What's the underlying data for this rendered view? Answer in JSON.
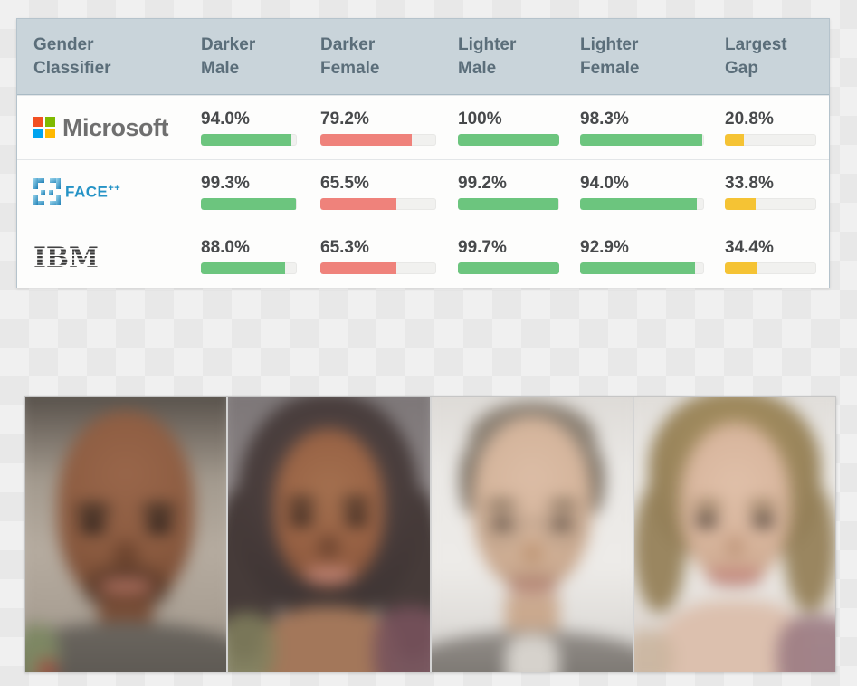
{
  "table": {
    "header": [
      {
        "line1": "Gender",
        "line2": "Classifier"
      },
      {
        "line1": "Darker",
        "line2": "Male"
      },
      {
        "line1": "Darker",
        "line2": "Female"
      },
      {
        "line1": "Lighter",
        "line2": "Male"
      },
      {
        "line1": "Lighter",
        "line2": "Female"
      },
      {
        "line1": "Largest",
        "line2": "Gap"
      }
    ],
    "colors": {
      "green": "#6cc57e",
      "red": "#ef827b",
      "yellow": "#f5c334",
      "header_bg": "#c9d4da",
      "header_text": "#5b6e7a",
      "value_text": "#47494b",
      "track": "#f1f1ef"
    },
    "rows": [
      {
        "company": "Microsoft",
        "cells": [
          {
            "label": "94.0%",
            "pct": 94,
            "color": "green"
          },
          {
            "label": "79.2%",
            "pct": 79.2,
            "color": "red"
          },
          {
            "label": "100%",
            "pct": 100,
            "color": "green"
          },
          {
            "label": "98.3%",
            "pct": 98.3,
            "color": "green"
          },
          {
            "label": "20.8%",
            "pct": 20.8,
            "color": "yellow"
          }
        ]
      },
      {
        "company": "FACE++",
        "cells": [
          {
            "label": "99.3%",
            "pct": 99.3,
            "color": "green"
          },
          {
            "label": "65.5%",
            "pct": 65.5,
            "color": "red"
          },
          {
            "label": "99.2%",
            "pct": 99.2,
            "color": "green"
          },
          {
            "label": "94.0%",
            "pct": 94,
            "color": "green"
          },
          {
            "label": "33.8%",
            "pct": 33.8,
            "color": "yellow"
          }
        ]
      },
      {
        "company": "IBM",
        "cells": [
          {
            "label": "88.0%",
            "pct": 88,
            "color": "green"
          },
          {
            "label": "65.3%",
            "pct": 65.3,
            "color": "red"
          },
          {
            "label": "99.7%",
            "pct": 99.7,
            "color": "green"
          },
          {
            "label": "92.9%",
            "pct": 92.9,
            "color": "green"
          },
          {
            "label": "34.4%",
            "pct": 34.4,
            "color": "yellow"
          }
        ]
      }
    ]
  },
  "logos": {
    "microsoft_wordmark": "Microsoft",
    "facepp_wordmark": "FACE",
    "facepp_sup": "++",
    "ibm_wordmark": "IBM"
  },
  "figure": {
    "panels": [
      "darker-male-average-face",
      "darker-female-average-face",
      "lighter-male-average-face",
      "lighter-female-average-face"
    ]
  },
  "chart_data": {
    "type": "table",
    "title": "Gender classifier accuracy by intersectional group",
    "columns": [
      "Gender Classifier",
      "Darker Male",
      "Darker Female",
      "Lighter Male",
      "Lighter Female",
      "Largest Gap"
    ],
    "unit": "%",
    "value_range": [
      0,
      100
    ],
    "rows": [
      {
        "classifier": "Microsoft",
        "darker_male": 94.0,
        "darker_female": 79.2,
        "lighter_male": 100,
        "lighter_female": 98.3,
        "largest_gap": 20.8
      },
      {
        "classifier": "FACE++",
        "darker_male": 99.3,
        "darker_female": 65.5,
        "lighter_male": 99.2,
        "lighter_female": 94.0,
        "largest_gap": 33.8
      },
      {
        "classifier": "IBM",
        "darker_male": 88.0,
        "darker_female": 65.3,
        "lighter_male": 99.7,
        "lighter_female": 92.9,
        "largest_gap": 34.4
      }
    ],
    "bar_color_rules": {
      "accuracy_high": "#6cc57e",
      "accuracy_low_darker_female": "#ef827b",
      "largest_gap": "#f5c334"
    },
    "legend_position": "none",
    "grid": false
  }
}
